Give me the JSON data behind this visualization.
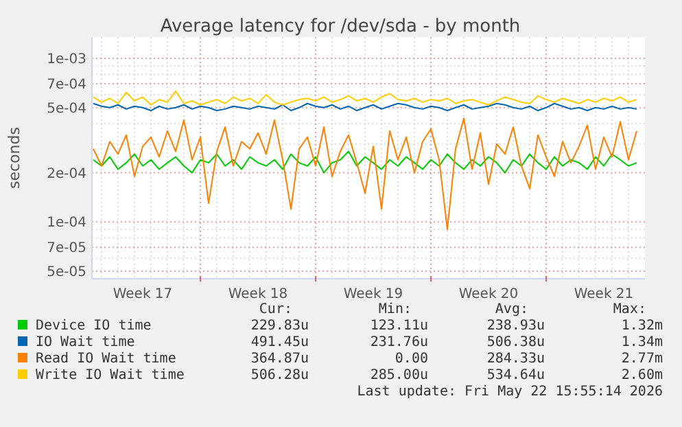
{
  "chart_data": {
    "type": "line",
    "title": "Average latency for /dev/sda - by month",
    "ylabel": "seconds",
    "log": true,
    "grid": true,
    "legend": "bottom",
    "marker": "none",
    "line_style": "solid",
    "xlim": [
      "2026-04-20T10:00",
      "2026-05-24T00:00"
    ],
    "xticks": [
      {
        "value": "2026-04-23T12:00",
        "label": "Week 17"
      },
      {
        "value": "2026-04-27",
        "label": null
      },
      {
        "value": "2026-04-30T12:00",
        "label": "Week 18"
      },
      {
        "value": "2026-05-04",
        "label": null
      },
      {
        "value": "2026-05-07T12:00",
        "label": "Week 19"
      },
      {
        "value": "2026-05-11",
        "label": null
      },
      {
        "value": "2026-05-14T12:00",
        "label": "Week 20"
      },
      {
        "value": "2026-05-18",
        "label": null
      },
      {
        "value": "2026-05-21T12:00",
        "label": "Week 21"
      }
    ],
    "ylim": [
      4.5e-05,
      0.00135
    ],
    "yticks": [
      {
        "value": 5e-05,
        "label": "5e-05"
      },
      {
        "value": 6e-05,
        "label": null
      },
      {
        "value": 7e-05,
        "label": "7e-05"
      },
      {
        "value": 8e-05,
        "label": null
      },
      {
        "value": 9e-05,
        "label": null
      },
      {
        "value": 0.0001,
        "label": "1e-04"
      },
      {
        "value": 0.0002,
        "label": "2e-04"
      },
      {
        "value": 0.0003,
        "label": null
      },
      {
        "value": 0.0004,
        "label": null
      },
      {
        "value": 0.0005,
        "label": "5e-04"
      },
      {
        "value": 0.0006,
        "label": null
      },
      {
        "value": 0.0007,
        "label": "7e-04"
      },
      {
        "value": 0.0008,
        "label": null
      },
      {
        "value": 0.0009,
        "label": null
      },
      {
        "value": 0.001,
        "label": "1e-03"
      }
    ],
    "x": [
      "2026-04-20T12:00",
      "2026-04-21T00:00",
      "2026-04-21T12:00",
      "2026-04-22T00:00",
      "2026-04-22T12:00",
      "2026-04-23T00:00",
      "2026-04-23T12:00",
      "2026-04-24T00:00",
      "2026-04-24T12:00",
      "2026-04-25T00:00",
      "2026-04-25T12:00",
      "2026-04-26T00:00",
      "2026-04-26T12:00",
      "2026-04-27T00:00",
      "2026-04-27T12:00",
      "2026-04-28T00:00",
      "2026-04-28T12:00",
      "2026-04-29T00:00",
      "2026-04-29T12:00",
      "2026-04-30T00:00",
      "2026-04-30T12:00",
      "2026-05-01T00:00",
      "2026-05-01T12:00",
      "2026-05-02T00:00",
      "2026-05-02T12:00",
      "2026-05-03T00:00",
      "2026-05-03T12:00",
      "2026-05-04T00:00",
      "2026-05-04T12:00",
      "2026-05-05T00:00",
      "2026-05-05T12:00",
      "2026-05-06T00:00",
      "2026-05-06T12:00",
      "2026-05-07T00:00",
      "2026-05-07T12:00",
      "2026-05-08T00:00",
      "2026-05-08T12:00",
      "2026-05-09T00:00",
      "2026-05-09T12:00",
      "2026-05-10T00:00",
      "2026-05-10T12:00",
      "2026-05-11T00:00",
      "2026-05-11T12:00",
      "2026-05-12T00:00",
      "2026-05-12T12:00",
      "2026-05-13T00:00",
      "2026-05-13T12:00",
      "2026-05-14T00:00",
      "2026-05-14T12:00",
      "2026-05-15T00:00",
      "2026-05-15T12:00",
      "2026-05-16T00:00",
      "2026-05-16T12:00",
      "2026-05-17T00:00",
      "2026-05-17T12:00",
      "2026-05-18T00:00",
      "2026-05-18T12:00",
      "2026-05-19T00:00",
      "2026-05-19T12:00",
      "2026-05-20T00:00",
      "2026-05-20T12:00",
      "2026-05-21T00:00",
      "2026-05-21T12:00",
      "2026-05-22T00:00",
      "2026-05-22T12:00",
      "2026-05-23T00:00",
      "2026-05-23T12:00"
    ],
    "series": [
      {
        "name": "Device IO time",
        "color": "#00cc00",
        "values": [
          0.00024,
          0.00022,
          0.00025,
          0.00021,
          0.00023,
          0.00026,
          0.00022,
          0.00024,
          0.00021,
          0.00023,
          0.00025,
          0.00022,
          0.0002,
          0.00024,
          0.00023,
          0.00026,
          0.00022,
          0.00024,
          0.00021,
          0.00025,
          0.00023,
          0.00022,
          0.00024,
          0.00021,
          0.00026,
          0.00023,
          0.00022,
          0.00025,
          0.0002,
          0.00023,
          0.00024,
          0.00027,
          0.00022,
          0.00025,
          0.00023,
          0.00021,
          0.00024,
          0.00022,
          0.00025,
          0.00023,
          0.00021,
          0.00024,
          0.00022,
          0.00026,
          0.00023,
          0.00021,
          0.00024,
          0.00022,
          0.00025,
          0.00023,
          0.0002,
          0.00024,
          0.00022,
          0.00026,
          0.00023,
          0.00021,
          0.00025,
          0.00022,
          0.00024,
          0.00023,
          0.00021,
          0.00025,
          0.00022,
          0.00026,
          0.00024,
          0.00022,
          0.00023
        ]
      },
      {
        "name": "IO Wait time",
        "color": "#0066b3",
        "values": [
          0.00053,
          0.00051,
          0.0005,
          0.00052,
          0.00049,
          0.00051,
          0.0005,
          0.00048,
          0.00051,
          0.00049,
          0.0005,
          0.00052,
          0.00049,
          0.00051,
          0.0005,
          0.00048,
          0.00049,
          0.00051,
          0.0005,
          0.00049,
          0.00051,
          0.0005,
          0.00049,
          0.00052,
          0.00048,
          0.0005,
          0.00053,
          0.00051,
          0.0005,
          0.00052,
          0.00049,
          0.00051,
          0.00048,
          0.0005,
          0.00052,
          0.00049,
          0.00051,
          0.00053,
          0.00052,
          0.0005,
          0.00049,
          0.00051,
          0.0005,
          0.00048,
          0.0005,
          0.00052,
          0.00049,
          0.0005,
          0.00051,
          0.00053,
          0.00052,
          0.0005,
          0.00049,
          0.00051,
          0.00048,
          0.0005,
          0.00053,
          0.00051,
          0.00049,
          0.0005,
          0.00048,
          0.0005,
          0.00049,
          0.00051,
          0.00049,
          0.0005,
          0.00049
        ]
      },
      {
        "name": "Read IO Wait time",
        "color": "#ff8000",
        "values": [
          0.00028,
          0.00022,
          0.00031,
          0.00026,
          0.00034,
          0.00019,
          0.00029,
          0.00033,
          0.00025,
          0.00036,
          0.00027,
          0.00042,
          0.00024,
          0.00033,
          0.00013,
          0.00027,
          0.00038,
          0.00022,
          0.00031,
          0.00028,
          0.00035,
          0.00026,
          0.00042,
          0.00024,
          0.00012,
          0.00028,
          0.00033,
          0.00022,
          0.00038,
          0.00019,
          0.00027,
          0.00034,
          0.00023,
          0.00015,
          0.00029,
          0.00012,
          0.00036,
          0.00024,
          0.00033,
          0.0002,
          0.00031,
          0.00037,
          0.00024,
          9e-05,
          0.00028,
          0.00043,
          0.00021,
          0.00035,
          0.00017,
          0.0003,
          0.00026,
          0.00038,
          0.00022,
          0.00016,
          0.00034,
          0.00025,
          0.00019,
          0.00031,
          0.00023,
          0.00029,
          0.00039,
          0.00021,
          0.00033,
          0.00025,
          0.00041,
          0.00024,
          0.00036
        ]
      },
      {
        "name": "Write IO Wait time",
        "color": "#ffcc00",
        "values": [
          0.00058,
          0.00054,
          0.00057,
          0.00053,
          0.00062,
          0.00055,
          0.00058,
          0.00052,
          0.00056,
          0.00054,
          0.00063,
          0.00053,
          0.00055,
          0.00052,
          0.00054,
          0.00056,
          0.00053,
          0.00058,
          0.00055,
          0.00057,
          0.00053,
          0.0006,
          0.00054,
          0.00052,
          0.00054,
          0.00056,
          0.00057,
          0.00055,
          0.00058,
          0.00054,
          0.00056,
          0.00059,
          0.00055,
          0.00057,
          0.00054,
          0.00058,
          0.00061,
          0.00056,
          0.00055,
          0.00057,
          0.00054,
          0.00056,
          0.00055,
          0.00057,
          0.00053,
          0.00055,
          0.00056,
          0.00054,
          0.00052,
          0.00055,
          0.00058,
          0.00056,
          0.00054,
          0.00053,
          0.00059,
          0.00056,
          0.00054,
          0.00057,
          0.00055,
          0.00053,
          0.00056,
          0.00054,
          0.00057,
          0.00055,
          0.00058,
          0.00054,
          0.00056
        ]
      }
    ],
    "annotations": [
      "Cur:",
      "Min:",
      "Avg:",
      "Max:",
      "229.83u",
      "123.11u",
      "238.93u",
      "1.32m",
      "491.45u",
      "231.76u",
      "506.38u",
      "1.34m",
      "364.87u",
      "0.00",
      "284.33u",
      "2.77m",
      "506.28u",
      "285.00u",
      "534.64u",
      "2.60m",
      "Last update: Fri May 22 15:55:14 2026"
    ]
  }
}
